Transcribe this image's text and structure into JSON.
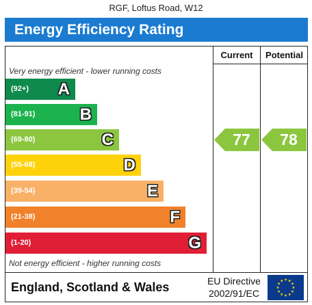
{
  "header": {
    "address": "RGF, Loftus Road, W12",
    "title": "Energy Efficiency Rating"
  },
  "columns": {
    "current": "Current",
    "potential": "Potential"
  },
  "notes": {
    "top": "Very energy efficient - lower running costs",
    "bottom": "Not energy efficient - higher running costs"
  },
  "footer": {
    "country": "England, Scotland & Wales",
    "directive_line1": "EU Directive",
    "directive_line2": "2002/91/EC"
  },
  "colors": {
    "banner": "#1a7bd1",
    "arrow": "#8cc63f"
  },
  "chart_data": {
    "type": "bar",
    "title": "Energy Efficiency Rating",
    "bands": [
      {
        "range": "(92+)",
        "letter": "A",
        "color": "#0e8a4c"
      },
      {
        "range": "(81-91)",
        "letter": "B",
        "color": "#1cb34e"
      },
      {
        "range": "(69-80)",
        "letter": "C",
        "color": "#8cc63f"
      },
      {
        "range": "(55-68)",
        "letter": "D",
        "color": "#fdd20a"
      },
      {
        "range": "(39-54)",
        "letter": "E",
        "color": "#f8b167"
      },
      {
        "range": "(21-38)",
        "letter": "F",
        "color": "#f1812a"
      },
      {
        "range": "(1-20)",
        "letter": "G",
        "color": "#e01f36"
      }
    ],
    "current": 77,
    "potential": 78
  }
}
